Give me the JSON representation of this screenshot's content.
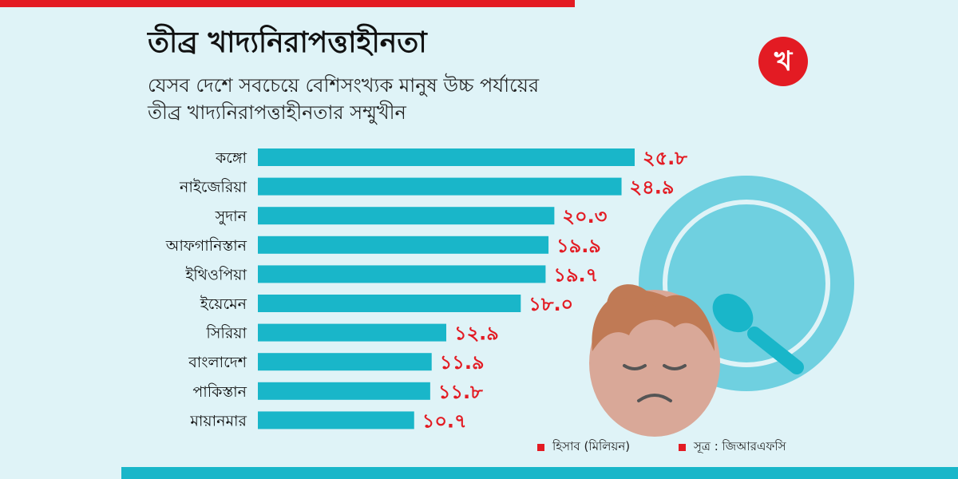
{
  "header": {
    "title": "তীব্র খাদ্যনিরাপত্তাহীনতা",
    "subtitle_line1": "যেসব দেশে সবচেয়ে বেশিসংখ্যক মানুষ উচ্চ পর্যায়ের",
    "subtitle_line2": "তীব্র খাদ্যনিরাপত্তাহীনতার সম্মুখীন",
    "logo_text": "খ"
  },
  "legend": {
    "unit": "হিসাব (মিলিয়ন)",
    "source": "সূত্র : জিআরএফসি"
  },
  "colors": {
    "bar": "#19b6c9",
    "value_text": "#e31b23",
    "accent": "#e31b23",
    "background": "#dff3f7"
  },
  "chart_data": {
    "type": "bar",
    "orientation": "horizontal",
    "categories": [
      "কঙ্গো",
      "নাইজেরিয়া",
      "সুদান",
      "আফগানিস্তান",
      "ইথিওপিয়া",
      "ইয়েমেন",
      "সিরিয়া",
      "বাংলাদেশ",
      "পাকিস্তান",
      "মায়ানমার"
    ],
    "values": [
      25.8,
      24.9,
      20.3,
      19.9,
      19.7,
      18.0,
      12.9,
      11.9,
      11.8,
      10.7
    ],
    "value_labels": [
      "২৫.৮",
      "২৪.৯",
      "২০.৩",
      "১৯.৯",
      "১৯.৭",
      "১৮.০",
      "১২.৯",
      "১১.৯",
      "১১.৮",
      "১০.৭"
    ],
    "title": "তীব্র খাদ্যনিরাপত্তাহীনতা",
    "xlabel": "",
    "ylabel": "",
    "xlim": [
      0,
      25.8
    ],
    "grid": false
  }
}
